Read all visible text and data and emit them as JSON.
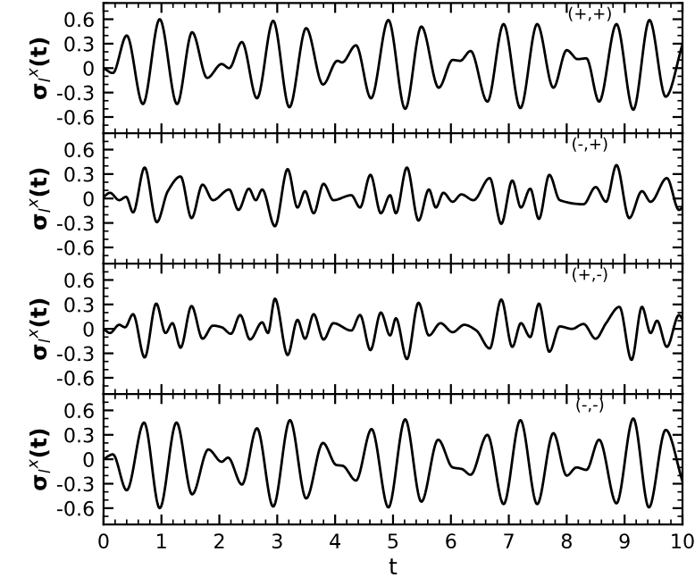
{
  "chart_data": [
    {
      "type": "line",
      "ylabel": "σ$_{l}$$^{x}$(t)",
      "annotations": [
        "(+,+)"
      ],
      "xlim": [
        0,
        10
      ],
      "xticks": [
        0,
        1,
        2,
        3,
        4,
        5,
        6,
        7,
        8,
        9,
        10
      ],
      "ylim": [
        -0.8,
        0.8
      ],
      "yticks": [
        -0.6,
        -0.3,
        0,
        0.3,
        0.6
      ],
      "tick_labels": "y",
      "line_style": "solid",
      "marker": "none",
      "series": [
        {
          "color": "#000000",
          "x": [
            0,
            0.16,
            0.4,
            0.68,
            0.97,
            1.27,
            1.53,
            1.79,
            2.04,
            2.17,
            2.39,
            2.65,
            2.93,
            3.21,
            3.5,
            3.79,
            4.04,
            4.12,
            4.36,
            4.62,
            4.92,
            5.21,
            5.49,
            5.79,
            6.03,
            6.16,
            6.34,
            6.63,
            6.91,
            7.2,
            7.49,
            7.77,
            8.0,
            8.19,
            8.34,
            8.56,
            8.86,
            9.15,
            9.43,
            9.71,
            10
          ],
          "values": [
            0,
            -0.06,
            0.4,
            -0.44,
            0.6,
            -0.44,
            0.44,
            -0.12,
            0.05,
            0.0,
            0.32,
            -0.37,
            0.58,
            -0.48,
            0.49,
            -0.2,
            0.09,
            0.07,
            0.28,
            -0.37,
            0.59,
            -0.5,
            0.51,
            -0.24,
            0.1,
            0.09,
            0.21,
            -0.41,
            0.54,
            -0.49,
            0.54,
            -0.24,
            0.22,
            0.11,
            0.12,
            -0.41,
            0.54,
            -0.51,
            0.59,
            -0.35,
            0.29
          ]
        }
      ]
    },
    {
      "type": "line",
      "ylabel": "σ$_{l}$$^{x}$(t)",
      "annotations": [
        "(-,+)"
      ],
      "xlim": [
        0,
        10
      ],
      "xticks": [
        0,
        1,
        2,
        3,
        4,
        5,
        6,
        7,
        8,
        9,
        10
      ],
      "ylim": [
        -0.8,
        0.8
      ],
      "yticks": [
        -0.6,
        -0.3,
        0,
        0.3,
        0.6
      ],
      "tick_labels": "y",
      "line_style": "solid",
      "marker": "none",
      "series": [
        {
          "color": "#000000",
          "x": [
            0,
            0.11,
            0.27,
            0.39,
            0.51,
            0.71,
            0.92,
            1.11,
            1.33,
            1.52,
            1.71,
            1.89,
            2.17,
            2.33,
            2.51,
            2.63,
            2.74,
            2.96,
            3.18,
            3.35,
            3.48,
            3.63,
            3.8,
            3.97,
            4.28,
            4.43,
            4.61,
            4.79,
            4.95,
            5.05,
            5.24,
            5.44,
            5.62,
            5.74,
            5.87,
            6.03,
            6.18,
            6.39,
            6.67,
            6.87,
            7.06,
            7.21,
            7.37,
            7.52,
            7.7,
            7.88,
            8.29,
            8.5,
            8.68,
            8.86,
            9.08,
            9.3,
            9.45,
            9.73,
            9.94,
            10
          ],
          "values": [
            0.02,
            0.07,
            -0.02,
            0.02,
            -0.17,
            0.38,
            -0.29,
            0.09,
            0.27,
            -0.24,
            0.17,
            -0.02,
            0.11,
            -0.14,
            0.12,
            -0.02,
            0.11,
            -0.34,
            0.36,
            -0.11,
            0.09,
            -0.18,
            0.18,
            -0.02,
            0.04,
            -0.11,
            0.29,
            -0.18,
            0.04,
            -0.18,
            0.38,
            -0.27,
            0.11,
            -0.11,
            0.07,
            -0.04,
            0.05,
            -0.02,
            0.25,
            -0.31,
            0.22,
            -0.11,
            0.12,
            -0.25,
            0.29,
            -0.02,
            -0.07,
            0.14,
            -0.04,
            0.41,
            -0.24,
            0.09,
            -0.04,
            0.25,
            -0.14,
            -0.11
          ]
        }
      ]
    },
    {
      "type": "line",
      "ylabel": "σ$_{l}$$^{x}$(t)",
      "annotations": [
        "(+,-)"
      ],
      "xlim": [
        0,
        10
      ],
      "xticks": [
        0,
        1,
        2,
        3,
        4,
        5,
        6,
        7,
        8,
        9,
        10
      ],
      "ylim": [
        -0.8,
        0.8
      ],
      "yticks": [
        -0.6,
        -0.3,
        0,
        0.3,
        0.6
      ],
      "tick_labels": "y",
      "line_style": "solid",
      "marker": "none",
      "series": [
        {
          "color": "#000000",
          "x": [
            0,
            0.11,
            0.27,
            0.37,
            0.51,
            0.71,
            0.91,
            1.07,
            1.19,
            1.33,
            1.52,
            1.71,
            1.89,
            2.04,
            2.2,
            2.36,
            2.53,
            2.74,
            2.84,
            2.96,
            3.18,
            3.35,
            3.48,
            3.63,
            3.8,
            3.97,
            4.28,
            4.43,
            4.61,
            4.79,
            4.95,
            5.05,
            5.24,
            5.44,
            5.62,
            5.82,
            6.03,
            6.23,
            6.44,
            6.67,
            6.87,
            7.06,
            7.21,
            7.37,
            7.52,
            7.7,
            7.88,
            8.09,
            8.29,
            8.5,
            8.68,
            8.91,
            9.12,
            9.3,
            9.45,
            9.56,
            9.73,
            9.94,
            10
          ],
          "values": [
            0,
            -0.05,
            0.05,
            0.02,
            0.18,
            -0.35,
            0.31,
            -0.05,
            0.07,
            -0.23,
            0.28,
            -0.12,
            0.04,
            0.02,
            -0.06,
            0.17,
            -0.13,
            0.08,
            -0.05,
            0.37,
            -0.32,
            0.11,
            -0.12,
            0.18,
            -0.13,
            0.07,
            -0.02,
            0.17,
            -0.26,
            0.2,
            -0.08,
            0.13,
            -0.37,
            0.32,
            -0.08,
            0.07,
            -0.04,
            0.05,
            -0.02,
            -0.24,
            0.36,
            -0.22,
            0.07,
            -0.1,
            0.31,
            -0.28,
            0.03,
            0.0,
            0.06,
            -0.12,
            0.07,
            0.27,
            -0.38,
            0.27,
            -0.05,
            0.1,
            -0.22,
            0.17,
            0.12
          ]
        }
      ]
    },
    {
      "type": "line",
      "ylabel": "σ$_{l}$$^{x}$(t)",
      "xlabel": "t",
      "annotations": [
        "(-,-)"
      ],
      "xlim": [
        0,
        10
      ],
      "xticks": [
        0,
        1,
        2,
        3,
        4,
        5,
        6,
        7,
        8,
        9,
        10
      ],
      "ylim": [
        -0.8,
        0.8
      ],
      "yticks": [
        -0.6,
        -0.3,
        0,
        0.3,
        0.6
      ],
      "line_style": "solid",
      "marker": "none",
      "series": [
        {
          "color": "#000000",
          "x": [
            0,
            0.16,
            0.4,
            0.7,
            0.97,
            1.26,
            1.53,
            1.81,
            2.04,
            2.15,
            2.39,
            2.65,
            2.93,
            3.22,
            3.5,
            3.79,
            4.02,
            4.13,
            4.36,
            4.63,
            4.92,
            5.21,
            5.49,
            5.78,
            6.03,
            6.19,
            6.34,
            6.63,
            6.91,
            7.2,
            7.49,
            7.77,
            8.0,
            8.17,
            8.34,
            8.56,
            8.86,
            9.15,
            9.42,
            9.71,
            10
          ],
          "values": [
            0,
            0.06,
            -0.38,
            0.45,
            -0.6,
            0.45,
            -0.43,
            0.12,
            -0.03,
            0.02,
            -0.31,
            0.38,
            -0.58,
            0.48,
            -0.48,
            0.2,
            -0.07,
            -0.08,
            -0.26,
            0.37,
            -0.59,
            0.49,
            -0.52,
            0.24,
            -0.1,
            -0.12,
            -0.19,
            0.3,
            -0.55,
            0.48,
            -0.55,
            0.32,
            -0.2,
            -0.1,
            -0.13,
            0.24,
            -0.54,
            0.5,
            -0.59,
            0.36,
            -0.27
          ]
        }
      ]
    }
  ]
}
